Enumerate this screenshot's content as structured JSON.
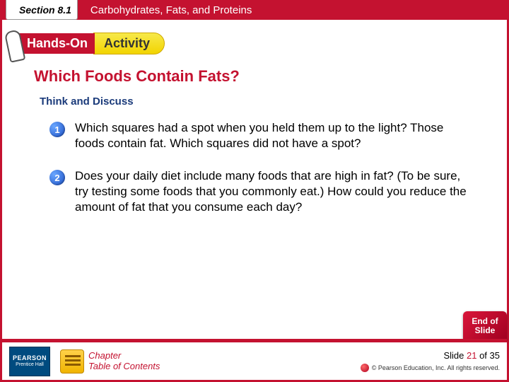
{
  "header": {
    "section_label": "Section 8.1",
    "chapter_title": "Carbohydrates, Fats, and Proteins"
  },
  "banner": {
    "hands_on": "Hands-On",
    "activity": "Activity"
  },
  "content": {
    "title": "Which Foods Contain Fats?",
    "subheading": "Think and Discuss",
    "items": [
      {
        "num": "1",
        "text": "Which squares had a spot when you held them up to the light? Those foods contain fat. Which squares did not have a spot?"
      },
      {
        "num": "2",
        "text": "Does your daily diet include many foods that are high in fat? (To be sure, try testing some foods that you commonly eat.) How could you reduce the amount of fat that you consume each day?"
      }
    ]
  },
  "footer": {
    "publisher_top": "PEARSON",
    "publisher_bottom": "Prentice Hall",
    "toc_line1": "Chapter",
    "toc_line2": "Table of Contents",
    "end_line1": "End of",
    "end_line2": "Slide",
    "slide_prefix": "Slide ",
    "slide_current": "21",
    "slide_mid": " of ",
    "slide_total": "35",
    "copyright": "© Pearson Education, Inc. All rights reserved."
  },
  "colors": {
    "brand_red": "#c41230",
    "badge_blue": "#1a4fc4",
    "heading_blue": "#1a3a7a"
  }
}
